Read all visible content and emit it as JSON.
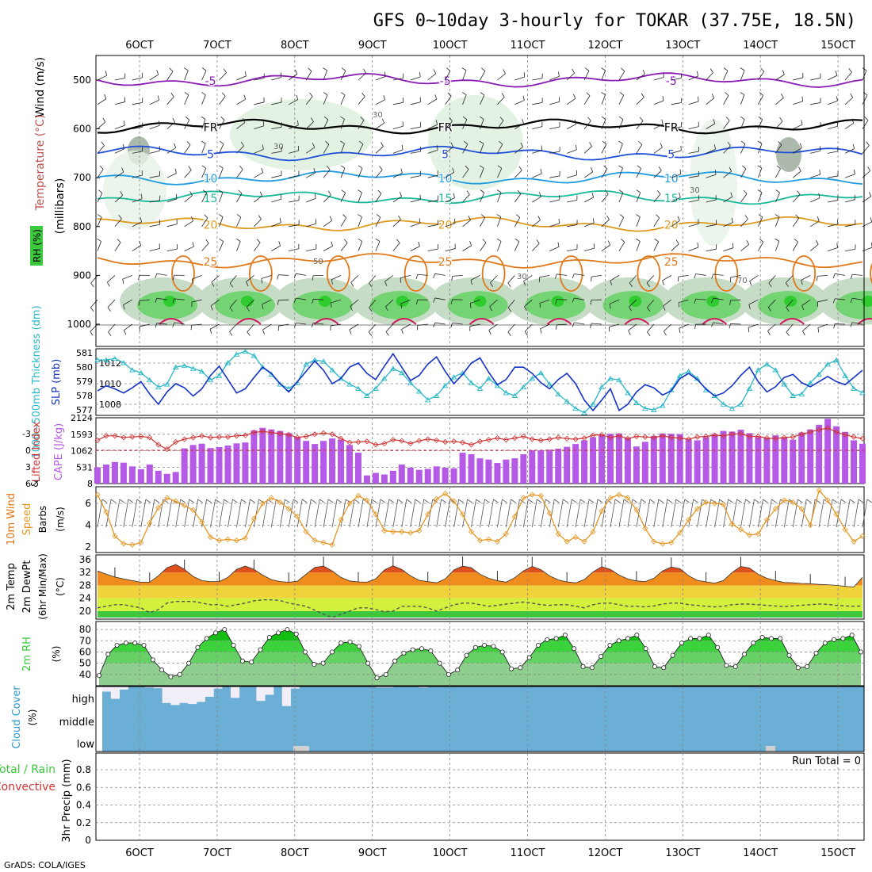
{
  "title": "GFS 0~10day 3-hourly for TOKAR (37.75E, 18.5N)",
  "footer": "GrADS: COLA/IGES",
  "colors": {
    "purple": "#8a1ab4",
    "black": "#000000",
    "blue": "#1e4fd8",
    "lightblue": "#1f9be0",
    "teal": "#18b89a",
    "orange": "#de9a1e",
    "orange2": "#e0781a",
    "magenta": "#d0155a",
    "green": "#3cc83c",
    "cyan": "#2ab8c8",
    "navy": "#1432c8",
    "red": "#d23232",
    "violet": "#b45ae6",
    "amber": "#e69623",
    "cloud": "#6baed6",
    "cloudLight": "#f2eef7"
  },
  "chart_data": {
    "type": "meteogram",
    "x_ticks": [
      "6OCT",
      "7OCT",
      "8OCT",
      "9OCT",
      "10OCT",
      "11OCT",
      "12OCT",
      "13OCT",
      "14OCT",
      "15OCT"
    ],
    "panels": [
      {
        "id": "upper",
        "ylabels": [
          "Wind (m/s)",
          "Temperature (°C)",
          "(millibars)",
          "RH (%)"
        ],
        "yticks": [
          "500",
          "600",
          "700",
          "800",
          "900",
          "1000"
        ],
        "isotherms": [
          {
            "label": "-5",
            "level": 500,
            "color": "purple"
          },
          {
            "label": "FR",
            "level": 595,
            "color": "black"
          },
          {
            "label": "5",
            "level": 650,
            "color": "blue"
          },
          {
            "label": "10",
            "level": 700,
            "color": "lightblue"
          },
          {
            "label": "15",
            "level": 740,
            "color": "teal"
          },
          {
            "label": "20",
            "level": 795,
            "color": "orange"
          },
          {
            "label": "25",
            "level": 870,
            "color": "orange2"
          }
        ],
        "rh_contours": [
          "30",
          "30",
          "30",
          "50",
          "30",
          "70"
        ]
      },
      {
        "id": "slp",
        "ylabels": [
          "SLP (mb)",
          "1000~500mb Thickness (dm)"
        ],
        "yticks_left": [
          "581",
          "580",
          "579",
          "578",
          "577"
        ],
        "yticks_right": [
          "1012",
          "1010",
          "1008"
        ],
        "slp": [
          1009.3,
          1009.8,
          1009.5,
          1009.1,
          1009.6,
          1010.2,
          1009.0,
          1008.0,
          1009.2,
          1010.0,
          1009.6,
          1008.8,
          1009.5,
          1010.8,
          1011.7,
          1010.4,
          1009.1,
          1009.5,
          1010.6,
          1011.6,
          1011.0,
          1010.0,
          1009.2,
          1010.2,
          1011.2,
          1012.2,
          1011.3,
          1010.0,
          1010.5,
          1011.6,
          1012.0,
          1011.0,
          1010.4,
          1011.7,
          1012.9,
          1011.6,
          1010.3,
          1010.8,
          1011.9,
          1012.6,
          1011.2,
          1010.0,
          1010.9,
          1012.0,
          1012.5,
          1011.1,
          1009.9,
          1010.4,
          1011.6,
          1011.6,
          1011.0,
          1010.1,
          1009.5,
          1010.4,
          1011.0,
          1010.0,
          1008.4,
          1007.4,
          1008.4,
          1009.5,
          1007.4,
          1008.0,
          1009.2,
          1009.9,
          1009.6,
          1008.9,
          1009.3,
          1010.5,
          1011.0,
          1010.4,
          1009.5,
          1008.8,
          1009.1,
          1009.8,
          1010.8,
          1011.6,
          1010.2,
          1009.2,
          1009.7,
          1010.6,
          1010.9,
          1010.1,
          1009.7,
          1010.2,
          1010.7,
          1010.2,
          1009.9,
          1010.6,
          1011.3
        ],
        "thickness": [
          580.5,
          580.5,
          580.6,
          580.3,
          579.8,
          579.6,
          579.1,
          578.6,
          578.8,
          580.0,
          580.1,
          579.9,
          579.7,
          579.1,
          579.4,
          580.3,
          580.9,
          581.1,
          580.8,
          580.0,
          579.5,
          578.8,
          578.5,
          578.9,
          580.2,
          580.5,
          580.4,
          579.8,
          579.2,
          578.8,
          578.5,
          578.0,
          578.5,
          579.2,
          579.9,
          579.6,
          578.9,
          578.3,
          577.7,
          578.0,
          578.7,
          579.3,
          579.6,
          578.9,
          578.5,
          579.2,
          578.7,
          578.2,
          578.0,
          578.6,
          579.2,
          579.6,
          578.8,
          578.1,
          577.6,
          577.1,
          576.8,
          577.4,
          578.6,
          579.2,
          579.1,
          578.2,
          577.5,
          577.1,
          577.0,
          577.3,
          578.4,
          579.4,
          579.7,
          579.2,
          578.4,
          578.0,
          577.4,
          577.1,
          577.4,
          578.5,
          579.8,
          580.2,
          579.8,
          578.8,
          578.0,
          578.1,
          578.9,
          579.5,
          580.2,
          580.5,
          579.4,
          578.5,
          578.2
        ]
      },
      {
        "id": "cape",
        "ylabels": [
          "CAPE (J/kg)",
          "Lifted Index"
        ],
        "yticks_left": [
          "-3",
          "0",
          "3",
          "6"
        ],
        "yticks_right": [
          "2124",
          "1593",
          "1062",
          "531",
          "8"
        ],
        "cape": [
          531,
          620,
          700,
          680,
          560,
          470,
          620,
          420,
          320,
          380,
          1140,
          1250,
          1290,
          1150,
          1180,
          1230,
          1300,
          1330,
          1720,
          1800,
          1750,
          1700,
          1630,
          1500,
          1380,
          1280,
          1380,
          1460,
          1420,
          1250,
          1000,
          270,
          350,
          300,
          420,
          620,
          520,
          450,
          480,
          560,
          520,
          500,
          1000,
          950,
          820,
          780,
          670,
          780,
          820,
          950,
          1080,
          1080,
          1100,
          1130,
          1190,
          1280,
          1400,
          1500,
          1580,
          1610,
          1620,
          1480,
          1200,
          1350,
          1540,
          1620,
          1610,
          1600,
          1430,
          1400,
          1500,
          1600,
          1700,
          1680,
          1740,
          1630,
          1500,
          1480,
          1560,
          1500,
          1420,
          1650,
          1750,
          1900,
          2090,
          1850,
          1670,
          1400,
          1290
        ],
        "lifted_index": [
          -1.8,
          -2.6,
          -2.6,
          -2.3,
          -2.4,
          -2.5,
          -2.3,
          -1.0,
          -0.2,
          -1.5,
          -2.0,
          -2.3,
          -2.6,
          -2.3,
          -2.4,
          -2.4,
          -2.6,
          -2.7,
          -3.2,
          -3.4,
          -3.2,
          -3.0,
          -2.8,
          -2.3,
          -2.5,
          -2.9,
          -3.1,
          -2.9,
          -2.1,
          -1.4,
          -1.5,
          -1.6,
          -1.0,
          -1.2,
          -1.9,
          -1.7,
          -1.2,
          -1.7,
          -2.0,
          -1.8,
          -1.5,
          -1.6,
          -1.4,
          -1.0,
          -1.6,
          -1.9,
          -2.2,
          -1.9,
          -2.2,
          -2.5,
          -2.0,
          -1.8,
          -2.0,
          -2.3,
          -2.1,
          -2.0,
          -2.2,
          -2.7,
          -2.8,
          -2.3,
          -2.6,
          -2.1,
          -2.5,
          -2.4,
          -2.3,
          -2.6,
          -2.3,
          -2.2,
          -2.0,
          -2.4,
          -2.5,
          -2.7,
          -2.6,
          -2.9,
          -3.0,
          -2.5,
          -2.5,
          -2.2,
          -2.1,
          -2.3,
          -2.4,
          -2.9,
          -3.3,
          -3.7,
          -4.0,
          -3.3,
          -2.8,
          -2.4,
          -2.1
        ]
      },
      {
        "id": "wind10m",
        "ylabels": [
          "Barbs",
          "(m/s)",
          "10m Wind",
          "Speed",
          "&"
        ],
        "yticks": [
          "6",
          "4",
          "2"
        ],
        "speed": [
          6.8,
          5.2,
          3.0,
          2.3,
          2.2,
          2.4,
          4.2,
          5.6,
          6.5,
          6.2,
          5.8,
          5.4,
          4.3,
          2.9,
          2.6,
          2.7,
          2.6,
          2.8,
          4.6,
          6.0,
          6.5,
          6.1,
          5.5,
          4.8,
          3.4,
          2.6,
          2.4,
          2.2,
          4.5,
          6.0,
          6.7,
          6.3,
          5.0,
          3.5,
          3.4,
          3.4,
          3.3,
          3.5,
          5.0,
          6.4,
          6.9,
          6.2,
          5.0,
          3.4,
          2.6,
          2.7,
          2.5,
          3.2,
          4.8,
          6.5,
          6.8,
          6.7,
          5.1,
          3.2,
          2.5,
          2.9,
          2.5,
          3.4,
          5.3,
          6.5,
          6.8,
          6.5,
          5.4,
          3.7,
          2.5,
          2.3,
          2.4,
          3.3,
          4.5,
          5.5,
          6.1,
          6.0,
          5.9,
          4.1,
          3.6,
          3.1,
          3.2,
          4.5,
          5.5,
          6.3,
          6.1,
          5.5,
          4.0,
          7.2,
          6.3,
          5.0,
          3.6,
          2.5,
          3.0
        ]
      },
      {
        "id": "temp2m",
        "ylabels": [
          "2m Temp",
          "2m DewPt",
          "(6hr Min/Max)",
          "(°C)"
        ],
        "yticks": [
          "36",
          "32",
          "28",
          "24",
          "20"
        ],
        "temp": [
          32.5,
          31.5,
          30.6,
          30.0,
          29.5,
          29.0,
          29.0,
          31.0,
          33.5,
          34.5,
          33.0,
          30.8,
          29.5,
          29.2,
          29.2,
          30.5,
          33.0,
          34.0,
          33.0,
          31.2,
          29.8,
          29.2,
          29.0,
          29.3,
          31.5,
          33.6,
          34.0,
          32.5,
          30.5,
          29.4,
          29.1,
          29.0,
          30.0,
          32.8,
          34.1,
          33.0,
          31.0,
          29.6,
          29.2,
          28.8,
          30.0,
          32.8,
          34.0,
          33.5,
          31.5,
          30.2,
          29.5,
          29.0,
          30.4,
          32.5,
          33.9,
          32.9,
          31.0,
          29.7,
          29.1,
          28.8,
          29.8,
          32.2,
          33.8,
          33.0,
          31.2,
          30.0,
          29.4,
          29.2,
          30.2,
          32.5,
          33.7,
          33.2,
          31.0,
          29.6,
          29.1,
          28.7,
          29.5,
          32.0,
          33.9,
          33.4,
          31.5,
          30.2,
          29.5,
          28.9,
          28.8,
          28.6,
          28.5,
          28.3,
          28.2,
          28.0,
          27.7,
          27.5,
          30.5
        ],
        "dewpoint": [
          21.0,
          21.5,
          22.0,
          22.0,
          21.5,
          21.0,
          19.5,
          20.5,
          22.5,
          23.0,
          23.0,
          23.0,
          22.5,
          22.0,
          22.0,
          21.5,
          22.0,
          22.5,
          23.2,
          23.5,
          23.5,
          23.3,
          22.5,
          22.0,
          21.5,
          20.3,
          19.0,
          18.0,
          19.0,
          20.0,
          21.0,
          21.0,
          20.5,
          19.8,
          20.0,
          21.5,
          21.5,
          21.5,
          21.0,
          20.0,
          21.0,
          22.0,
          22.5,
          22.5,
          22.0,
          21.5,
          21.8,
          22.2,
          22.5,
          22.8,
          22.5,
          22.0,
          21.8,
          22.0,
          22.0,
          21.5,
          21.0,
          22.0,
          22.5,
          22.5,
          22.0,
          21.5,
          21.5,
          21.3,
          21.6,
          22.2,
          22.5,
          22.5,
          22.0,
          21.8,
          21.5,
          21.3,
          21.5,
          22.0,
          22.2,
          22.2,
          22.0,
          21.8,
          21.6,
          21.4,
          21.6,
          21.8,
          22.0,
          22.2,
          22.1,
          21.8,
          21.6,
          21.5,
          21.6
        ]
      },
      {
        "id": "rh2m",
        "ylabels": [
          "2m RH",
          "(%)"
        ],
        "yticks": [
          "80",
          "70",
          "60",
          "50",
          "40"
        ],
        "rh": [
          39,
          58,
          66,
          68,
          68,
          66,
          53,
          44,
          38,
          40,
          50,
          64,
          72,
          77,
          80,
          66,
          52,
          51,
          62,
          73,
          77,
          80,
          76,
          60,
          49,
          50,
          60,
          68,
          69,
          65,
          50,
          37,
          40,
          52,
          59,
          62,
          63,
          61,
          50,
          40,
          44,
          57,
          64,
          66,
          65,
          60,
          45,
          46,
          55,
          66,
          71,
          72,
          75,
          63,
          47,
          46,
          56,
          66,
          70,
          72,
          75,
          63,
          47,
          46,
          57,
          68,
          72,
          72,
          75,
          64,
          48,
          47,
          58,
          68,
          73,
          72,
          72,
          57,
          46,
          47,
          59,
          68,
          71,
          72,
          75,
          60
        ]
      },
      {
        "id": "cloud",
        "ylabels": [
          "Cloud Cover",
          "(%)"
        ],
        "levels": [
          "high",
          "middle",
          "low"
        ],
        "high": [
          75,
          40,
          85,
          100,
          100,
          95,
          92,
          20,
          10,
          20,
          15,
          25,
          50,
          90,
          100,
          45,
          100,
          100,
          30,
          60,
          100,
          5,
          90,
          100,
          100,
          100,
          100,
          100,
          100,
          100,
          100,
          100,
          95,
          95,
          100,
          100,
          100,
          95,
          100,
          100,
          100,
          100,
          100,
          100,
          100,
          100,
          100,
          100,
          100,
          100,
          100,
          100,
          100,
          100,
          100,
          100,
          100,
          100,
          100,
          100,
          100,
          100,
          100,
          100,
          100,
          100,
          100,
          100,
          100,
          100,
          100,
          100,
          100,
          100,
          100,
          100,
          100,
          100,
          100,
          100,
          100,
          100,
          100,
          100,
          100,
          100,
          100,
          100,
          100
        ],
        "low": [
          0,
          0,
          0,
          0,
          0,
          0,
          0,
          0,
          0,
          0,
          0,
          0,
          0,
          0,
          0,
          0,
          0,
          0,
          0,
          0,
          0,
          0,
          0,
          0,
          0,
          0,
          0,
          0,
          0,
          0,
          0,
          0,
          0,
          0,
          0,
          0,
          0,
          0,
          0,
          0,
          0,
          0,
          0,
          0,
          0,
          0,
          0,
          0,
          0,
          0,
          0,
          0,
          0,
          0,
          0,
          0,
          0,
          0,
          0,
          0,
          0,
          0,
          0,
          0,
          0,
          0,
          0,
          0,
          0,
          0,
          0,
          0,
          0,
          0,
          0,
          0,
          0,
          0,
          0,
          0,
          0,
          0,
          0,
          0,
          0,
          0,
          0,
          0,
          0
        ]
      },
      {
        "id": "precip",
        "ylabels": [
          "3hr Precip (mm)",
          "Total / Rain",
          "Convective"
        ],
        "yticks": [
          "0.8",
          "0.6",
          "0.4",
          "0.2",
          "0"
        ],
        "run_total": "Run Total = 0"
      }
    ]
  }
}
